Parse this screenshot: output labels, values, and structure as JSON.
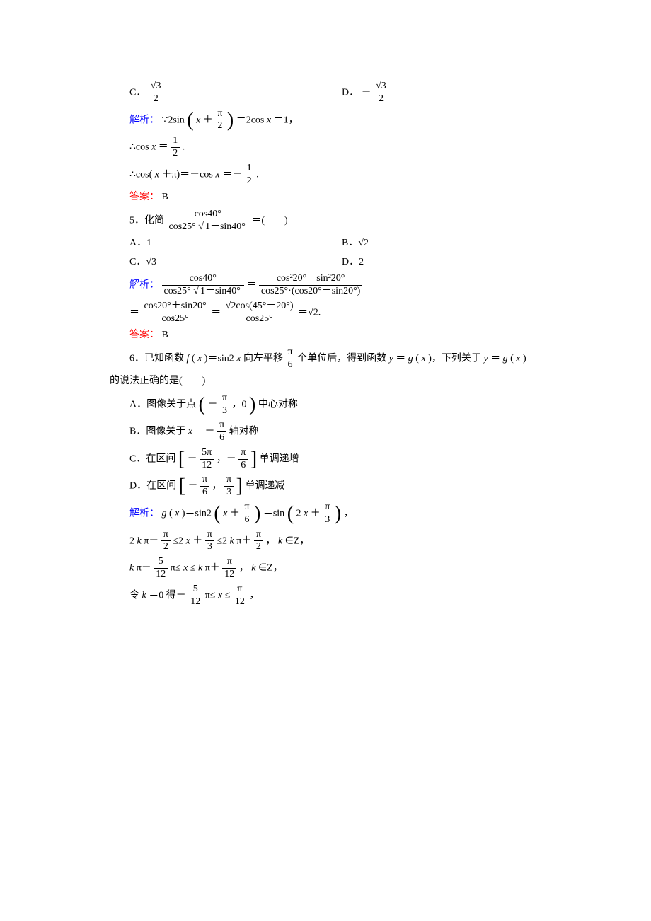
{
  "colors": {
    "text": "#000000",
    "blue": "#0000ff",
    "red": "#ff0000",
    "background": "#ffffff"
  },
  "typography": {
    "body_fontsize_pt": 10.5,
    "body_font": "SimSun / 宋体",
    "math_font": "Times New Roman",
    "line_height": 1.6
  },
  "q4": {
    "optC_label": "C．",
    "optC_num": "√3",
    "optC_den": "2",
    "optD_label": "D．",
    "optD_sign": "－",
    "optD_num": "√3",
    "optD_den": "2",
    "analysis_label": "解析：",
    "step1_pre": "∵2sin",
    "step1_open": "(",
    "step1_inner_a": "x",
    "step1_inner_plus": "＋",
    "step1_inner_num": "π",
    "step1_inner_den": "2",
    "step1_close": ")",
    "step1_mid": "＝2cos",
    "step1_x": "x",
    "step1_tail": "＝1，",
    "step2_pre": "∴cos",
    "step2_x": "x",
    "step2_eq": "＝",
    "step2_num": "1",
    "step2_den": "2",
    "step2_tail": ".",
    "step3_pre": "∴cos(",
    "step3_x": "x",
    "step3_mid": "＋π)＝－cos",
    "step3_x2": "x",
    "step3_eq": "＝－",
    "step3_num": "1",
    "step3_den": "2",
    "step3_tail": ".",
    "answer_label": "答案：",
    "answer": "B"
  },
  "q5": {
    "stem_pre": "5．化简",
    "stem_num": "cos40°",
    "stem_den_a": "cos25°",
    "stem_den_rad": "1－sin40°",
    "stem_tail": "＝(　　)",
    "optA": "A．1",
    "optB": "B．√2",
    "optC": "C．√3",
    "optD": "D．2",
    "analysis_label": "解析：",
    "eq1_l_num": "cos40°",
    "eq1_l_den_a": "cos25°",
    "eq1_l_den_rad": "1－sin40°",
    "eq1_eq": "＝",
    "eq1_r_num": "cos²20°－sin²20°",
    "eq1_r_den": "cos25°·(cos20°－sin20°)",
    "eq2_pre": "＝",
    "eq2_l_num": "cos20°＋sin20°",
    "eq2_l_den": "cos25°",
    "eq2_mid": "＝",
    "eq2_r_num": "√2cos(45°－20°)",
    "eq2_r_den": "cos25°",
    "eq2_tail": "＝√2.",
    "answer_label": "答案：",
    "answer": "B"
  },
  "q6": {
    "stem_line1_pre": "6．已知函数 ",
    "stem_f": "f",
    "stem_line1_a": "(",
    "stem_x1": "x",
    "stem_line1_b": ")＝sin2",
    "stem_x2": "x",
    "stem_line1_c": "向左平移",
    "stem_shift_num": "π",
    "stem_shift_den": "6",
    "stem_line1_d": "个单位后，得到函数 ",
    "stem_y1": "y",
    "stem_line1_e": "＝",
    "stem_g1": "g",
    "stem_line1_f": "(",
    "stem_x3": "x",
    "stem_line1_g": ")，下列关于 ",
    "stem_y2": "y",
    "stem_line1_h": "＝",
    "stem_g2": "g",
    "stem_line1_i": "(",
    "stem_x4": "x",
    "stem_line1_j": ")",
    "stem_line2": "的说法正确的是(　　)",
    "optA_pre": "A．图像关于点",
    "optA_open": "(",
    "optA_sign": "－",
    "optA_num": "π",
    "optA_den": "3",
    "optA_mid": "，0",
    "optA_close": ")",
    "optA_tail": "中心对称",
    "optB_pre": "B．图像关于 ",
    "optB_x": "x",
    "optB_eq": "＝－",
    "optB_num": "π",
    "optB_den": "6",
    "optB_tail": "轴对称",
    "optC_pre": "C．在区间",
    "optC_open": "[",
    "optC_sign1": "－",
    "optC_num1": "5π",
    "optC_den1": "12",
    "optC_mid": "，－",
    "optC_num2": "π",
    "optC_den2": "6",
    "optC_close": "]",
    "optC_tail": "单调递增",
    "optD_pre": "D．在区间",
    "optD_open": "[",
    "optD_sign1": "－",
    "optD_num1": "π",
    "optD_den1": "6",
    "optD_mid": "，",
    "optD_num2": "π",
    "optD_den2": "3",
    "optD_close": "]",
    "optD_tail": "单调递减",
    "analysis_label": "解析：",
    "an1_g": "g",
    "an1_a": "(",
    "an1_x1": "x",
    "an1_b": ")＝sin2",
    "an1_open1": "(",
    "an1_x2": "x",
    "an1_plus1": "＋",
    "an1_num1": "π",
    "an1_den1": "6",
    "an1_close1": ")",
    "an1_mid": "＝sin",
    "an1_open2": "(",
    "an1_c": "2",
    "an1_x3": "x",
    "an1_plus2": "＋",
    "an1_num2": "π",
    "an1_den2": "3",
    "an1_close2": ")",
    "an1_tail": "，",
    "an2_a": "2",
    "an2_k1": "k",
    "an2_b": "π－",
    "an2_num1": "π",
    "an2_den1": "2",
    "an2_c": "≤2",
    "an2_x": "x",
    "an2_d": "＋",
    "an2_num2": "π",
    "an2_den2": "3",
    "an2_e": "≤2",
    "an2_k2": "k",
    "an2_f": "π＋",
    "an2_num3": "π",
    "an2_den3": "2",
    "an2_tail": "，",
    "an2_k3": "k",
    "an2_g": "∈Z，",
    "an3_k1": "k",
    "an3_a": "π－",
    "an3_num1": "5",
    "an3_den1": "12",
    "an3_b": "π≤",
    "an3_x": "x",
    "an3_c": "≤",
    "an3_k2": "k",
    "an3_d": "π＋",
    "an3_num2": "π",
    "an3_den2": "12",
    "an3_tail": "，",
    "an3_k3": "k",
    "an3_e": "∈Z，",
    "an4_pre": "令 ",
    "an4_k": "k",
    "an4_a": "＝0 得－",
    "an4_num1": "5",
    "an4_den1": "12",
    "an4_b": "π≤",
    "an4_x": "x",
    "an4_c": "≤",
    "an4_num2": "π",
    "an4_den2": "12",
    "an4_tail": "，"
  }
}
